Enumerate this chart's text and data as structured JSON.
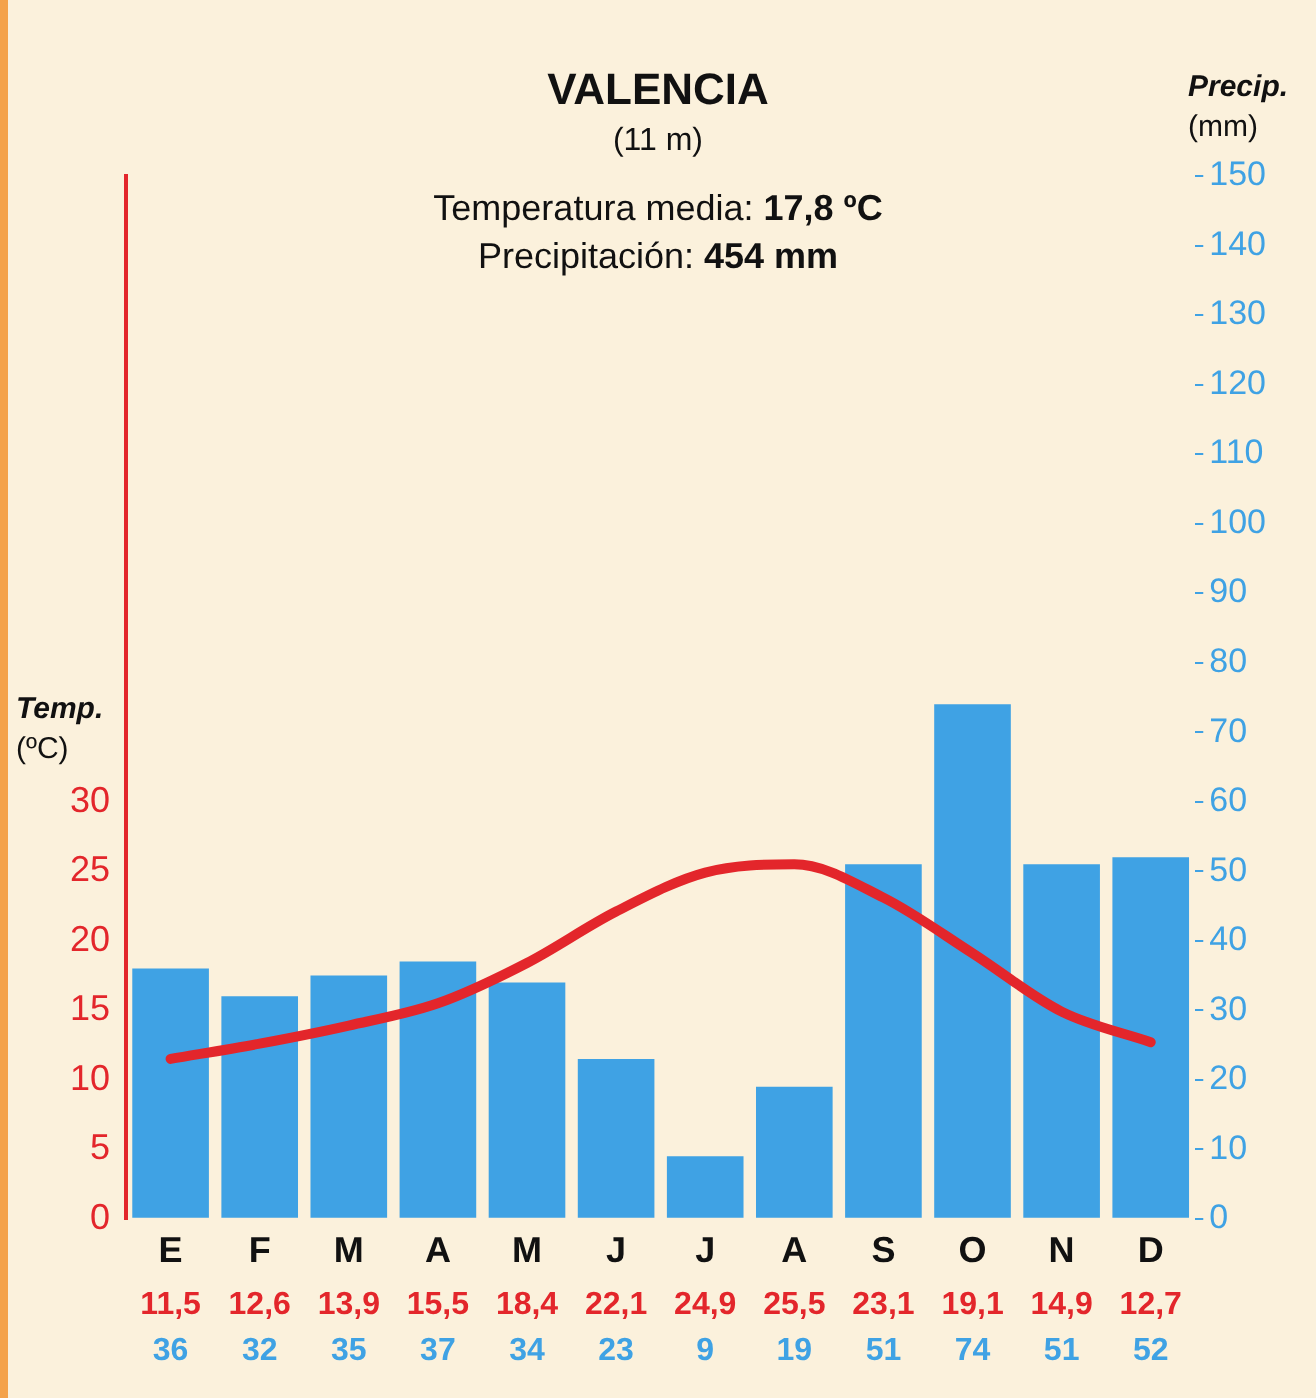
{
  "chart_data": {
    "type": "bar",
    "title": "VALENCIA",
    "subtitle": "(11 m)",
    "annotations": [
      "Temperatura media: 17,8 ºC",
      "Precipitación: 454 mm"
    ],
    "ylabel": "Temp.\n(ºC)",
    "y2label": "Precip.\n(mm)",
    "categories": [
      "E",
      "F",
      "M",
      "A",
      "M",
      "J",
      "J",
      "A",
      "S",
      "O",
      "N",
      "D"
    ],
    "series": [
      {
        "type": "line",
        "color": "#e3262b",
        "values": [
          11.5,
          12.6,
          13.9,
          15.5,
          18.4,
          22.1,
          24.9,
          25.5,
          23.1,
          19.1,
          14.9,
          12.7
        ],
        "value_labels": [
          "11,5",
          "12,6",
          "13,9",
          "15,5",
          "18,4",
          "22,1",
          "24,9",
          "25,5",
          "23,1",
          "19,1",
          "14,9",
          "12,7"
        ]
      },
      {
        "axis": "y2",
        "color": "#3fa2e4",
        "values": [
          36,
          32,
          35,
          37,
          34,
          23,
          9,
          19,
          51,
          74,
          51,
          52
        ],
        "value_labels": [
          "36",
          "32",
          "35",
          "37",
          "34",
          "23",
          "9",
          "19",
          "51",
          "74",
          "51",
          "52"
        ]
      }
    ],
    "ylim": [
      0,
      75
    ],
    "yticks": [
      0,
      5,
      10,
      15,
      20,
      25,
      30
    ],
    "y2lim": [
      0,
      150
    ],
    "y2ticks": [
      0,
      10,
      20,
      30,
      40,
      50,
      60,
      70,
      80,
      90,
      100,
      110,
      120,
      130,
      140,
      150
    ],
    "grid": false,
    "legend": false,
    "marker": "none"
  }
}
